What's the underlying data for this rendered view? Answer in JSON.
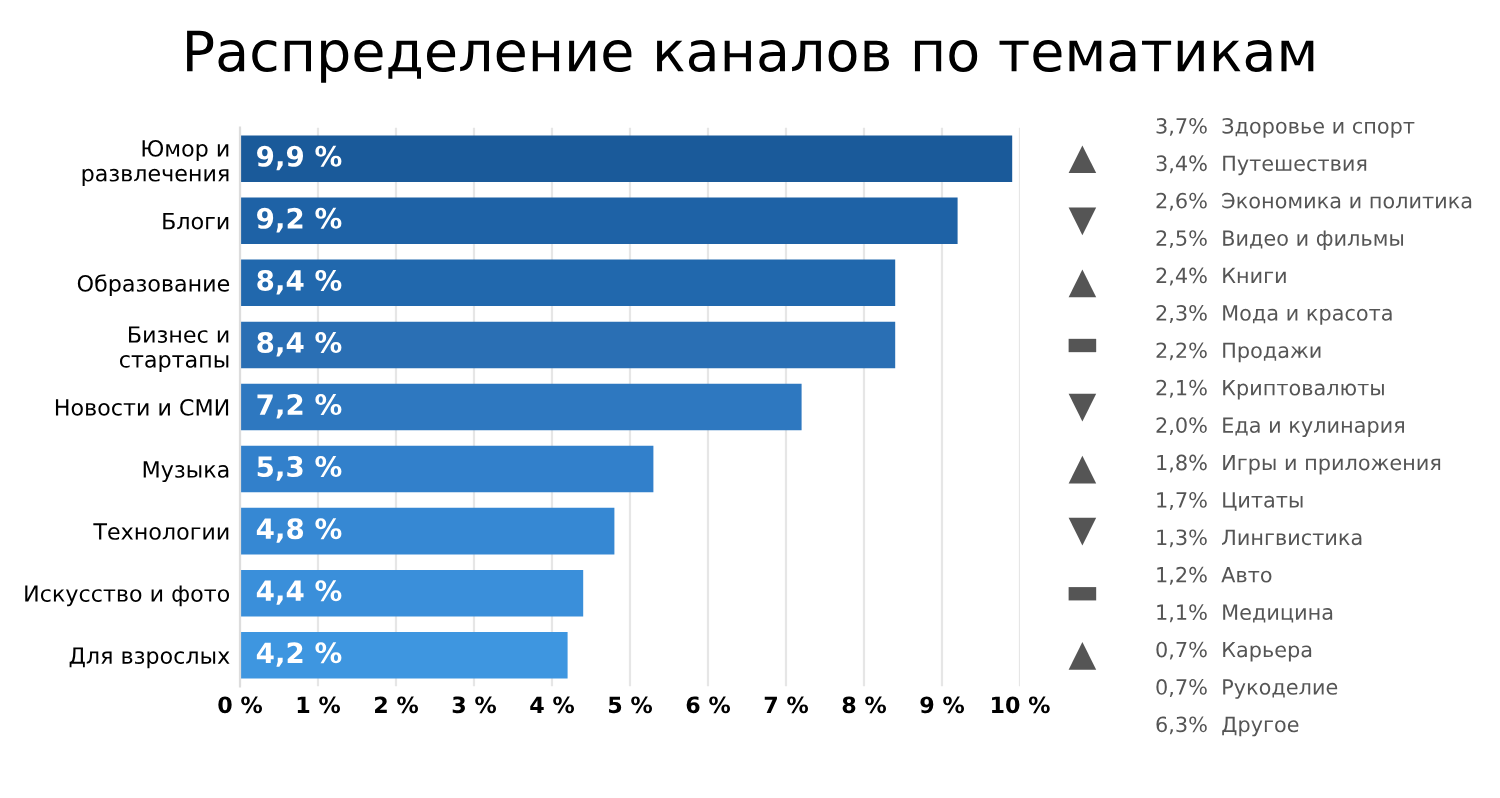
{
  "chart_data": {
    "type": "bar",
    "orientation": "horizontal",
    "title": "Распределение каналов по тематикам",
    "categories": [
      "Юмор и\nразвлечения",
      "Блоги",
      "Образование",
      "Бизнес и\nстартапы",
      "Новости и СМИ",
      "Музыка",
      "Технологии",
      "Искусство и фото",
      "Для взрослых"
    ],
    "values": [
      9.9,
      9.2,
      8.4,
      8.4,
      7.2,
      5.3,
      4.8,
      4.4,
      4.2
    ],
    "colors": [
      "#1a5a9a",
      "#1e62a6",
      "#2168ad",
      "#2a6fb4",
      "#2e78c0",
      "#3280cb",
      "#3688d3",
      "#3a8fda",
      "#3e96e0"
    ],
    "value_labels": [
      "9,9 %",
      "9,2 %",
      "8,4 %",
      "8,4 %",
      "7,2 %",
      "5,3 %",
      "4,8 %",
      "4,4 %",
      "4,2 %"
    ],
    "xlim": [
      0,
      10
    ],
    "xticks": [
      {
        "value": 0,
        "label": "0 %"
      },
      {
        "value": 1,
        "label": "1 %"
      },
      {
        "value": 2,
        "label": "2 %"
      },
      {
        "value": 3,
        "label": "3 %"
      },
      {
        "value": 4,
        "label": "4 %"
      },
      {
        "value": 5,
        "label": "5 %"
      },
      {
        "value": 6,
        "label": "6 %"
      },
      {
        "value": 7,
        "label": "7 %"
      },
      {
        "value": 8,
        "label": "8 %"
      },
      {
        "value": 9,
        "label": "9 %"
      },
      {
        "value": 10,
        "label": "10 %"
      }
    ],
    "grid": "x",
    "annotations": [
      "▲",
      "▼",
      "▲",
      "▬",
      "▼",
      "▲",
      "▼",
      "▬",
      "▲",
      "3,7%  Здоровье и спорт",
      "3,4%  Путешествия",
      "2,6%  Экономика и политика",
      "2,5%  Видео и фильмы",
      "2,4%  Книги",
      "2,3%  Мода и красота",
      "2,2%  Продажи",
      "2,1%  Криптовалюты",
      "2,0%  Еда и кулинария",
      "1,8%  Игры и приложения",
      "1,7%  Цитаты",
      "1,3%  Лингвистика",
      "1,2%  Авто",
      "1,1%  Медицина",
      "0,7%  Карьера",
      "0,7%  Рукоделие",
      "6,3%  Другое"
    ]
  }
}
